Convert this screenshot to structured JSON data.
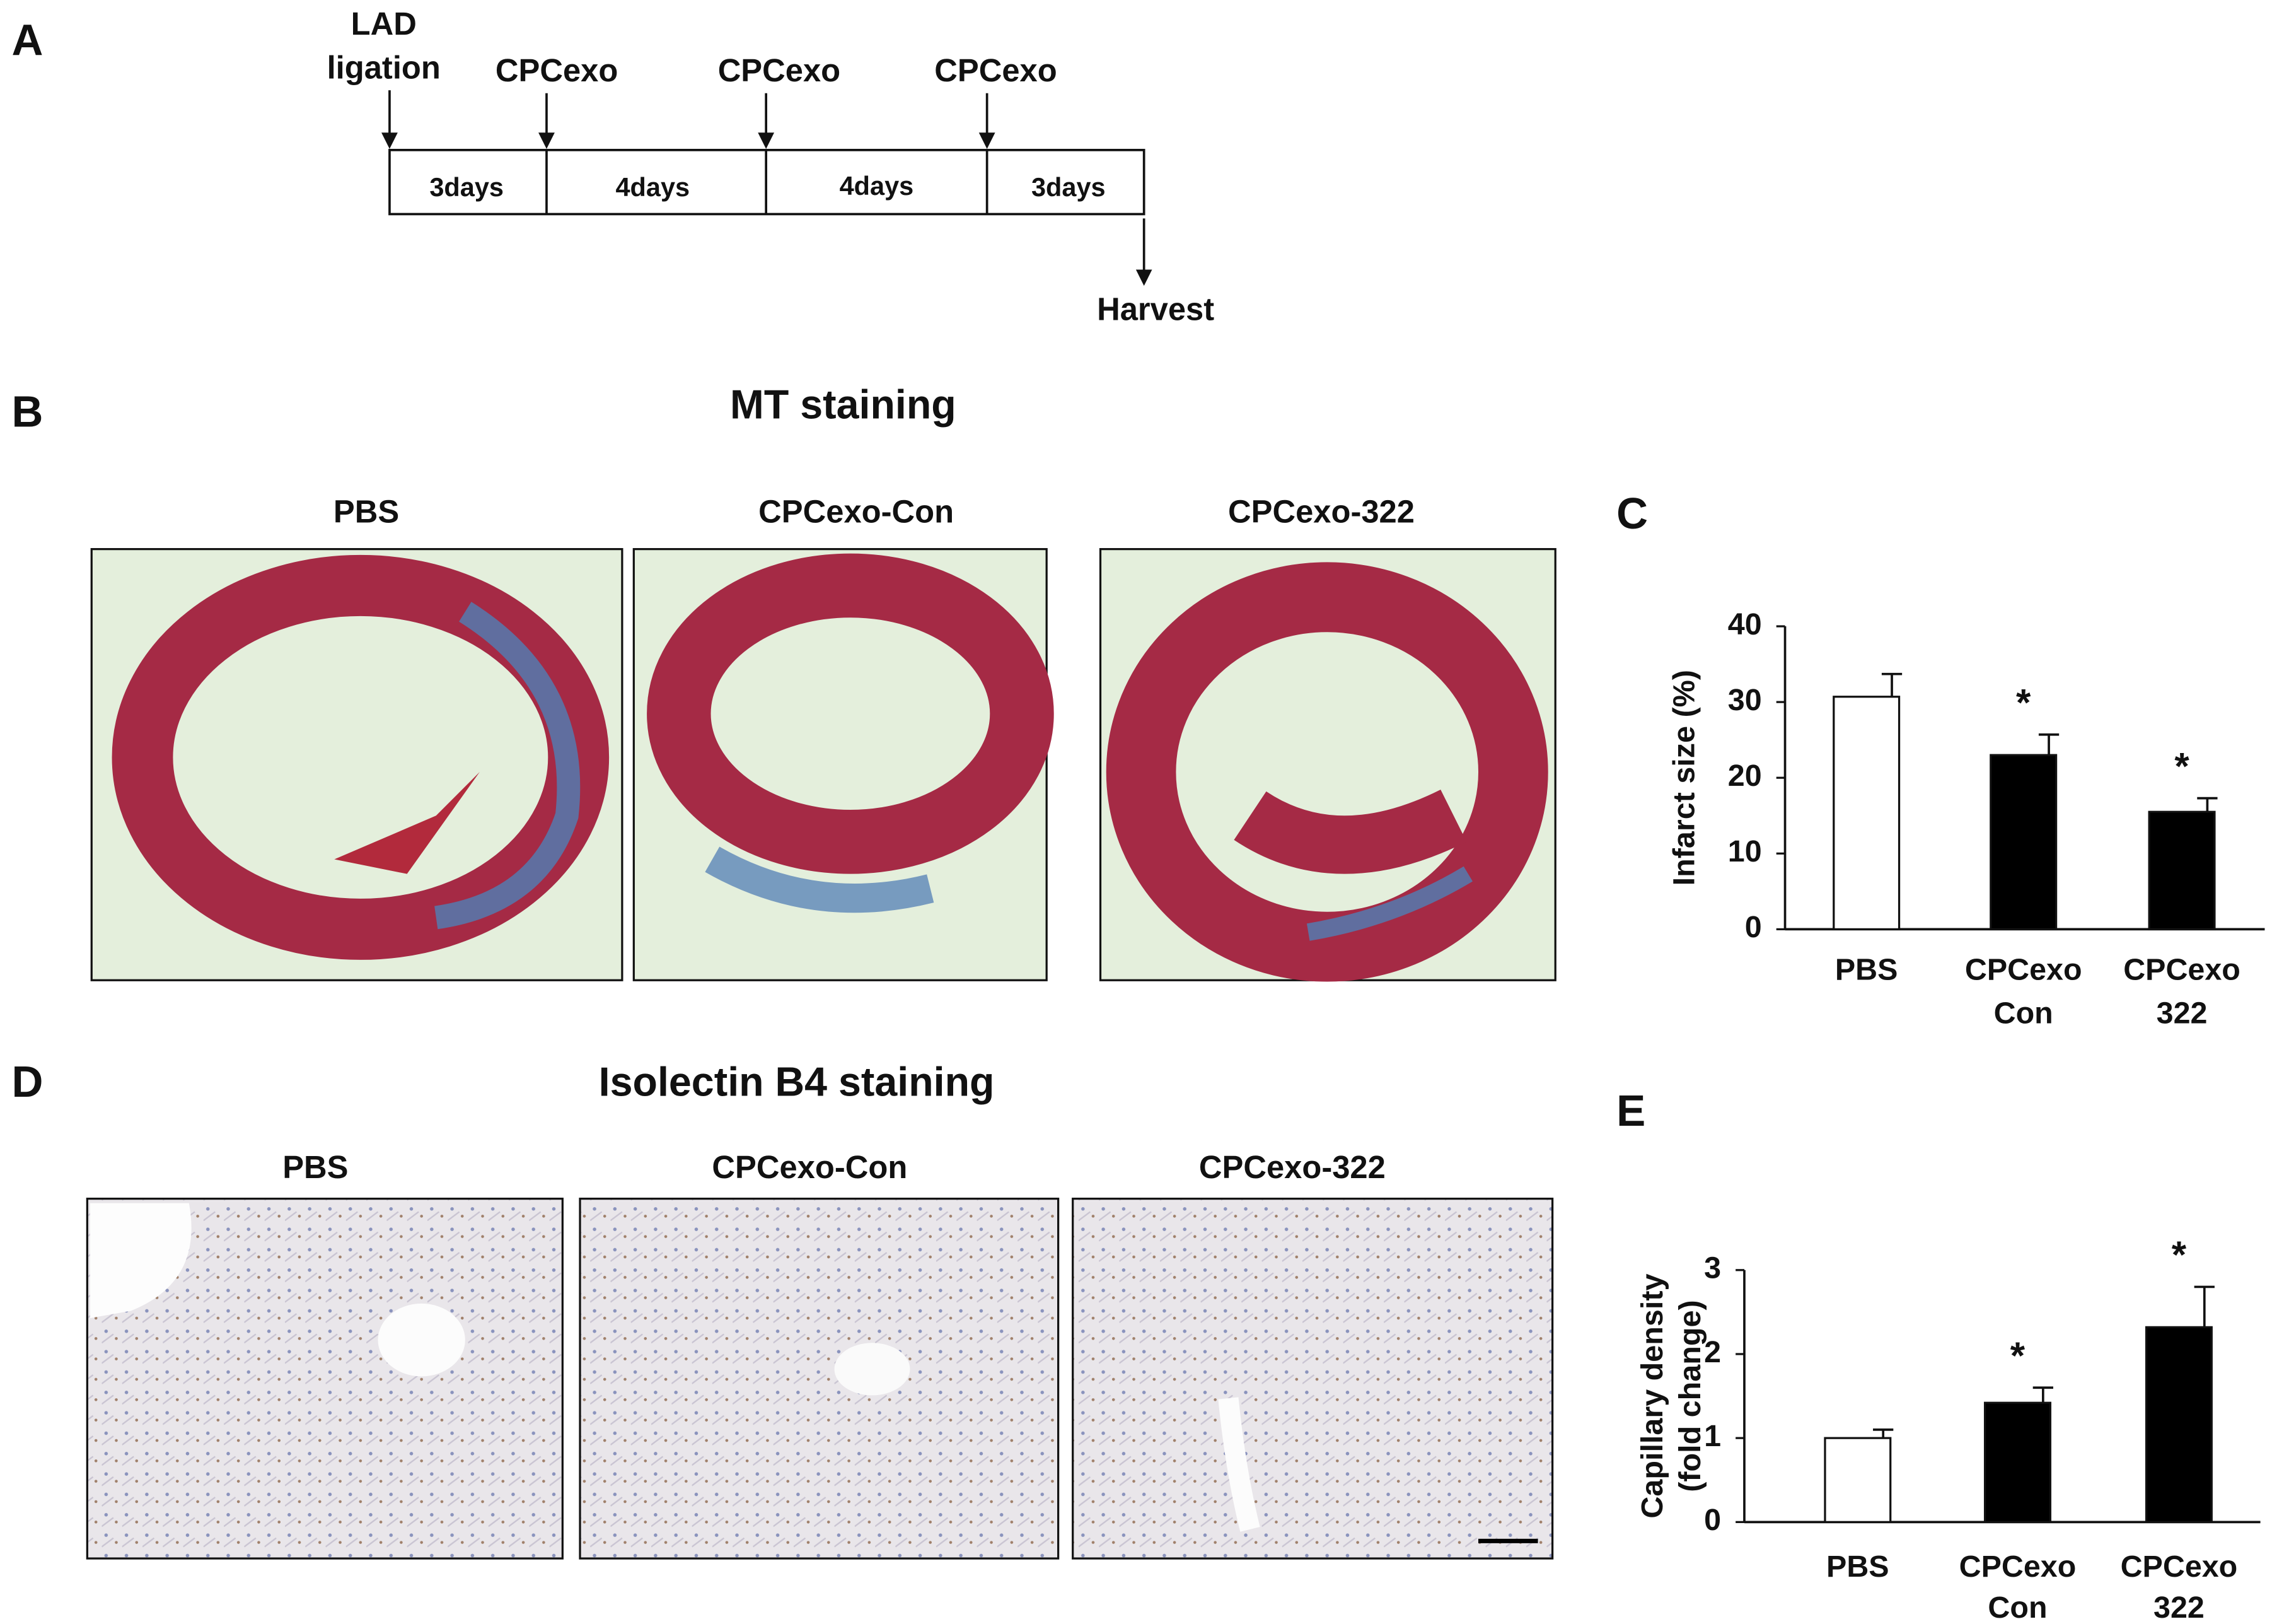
{
  "panels": {
    "a": "A",
    "b": "B",
    "c": "C",
    "d": "D",
    "e": "E"
  },
  "timeline": {
    "ligation": [
      "LAD",
      "ligation"
    ],
    "injections": [
      "CPCexo",
      "CPCexo",
      "CPCexo"
    ],
    "intervals": [
      "3days",
      "4days",
      "4days",
      "3days"
    ],
    "end": "Harvest"
  },
  "mt": {
    "title": "MT staining",
    "groups": [
      "PBS",
      "CPCexo-Con",
      "CPCexo-322"
    ]
  },
  "isolectin": {
    "title": "Isolectin B4 staining",
    "groups": [
      "PBS",
      "CPCexo-Con",
      "CPCexo-322"
    ]
  },
  "chart_data": [
    {
      "type": "bar",
      "ylabel": [
        "Infarct size (%)"
      ],
      "categories": [
        "PBS",
        "CPCexo Con",
        "CPCexo 322"
      ],
      "values": [
        30.7,
        23,
        15.5
      ],
      "errors": [
        3,
        2.7,
        1.8
      ],
      "colors": [
        "#ffffff",
        "#000000",
        "#000000"
      ],
      "significance": [
        null,
        "*",
        "*"
      ],
      "ylim": [
        0,
        40
      ],
      "yticks": [
        0,
        10,
        20,
        30,
        40
      ]
    },
    {
      "type": "bar",
      "ylabel": [
        "Capillary density",
        "(fold change)"
      ],
      "categories": [
        "PBS",
        "CPCexo Con",
        "CPCexo 322"
      ],
      "values": [
        1,
        1.42,
        2.32
      ],
      "errors": [
        0.1,
        0.18,
        0.48
      ],
      "colors": [
        "#ffffff",
        "#000000",
        "#000000"
      ],
      "significance": [
        null,
        "*",
        "*"
      ],
      "ylim": [
        0,
        3
      ],
      "yticks": [
        0,
        1,
        2,
        3
      ]
    }
  ]
}
